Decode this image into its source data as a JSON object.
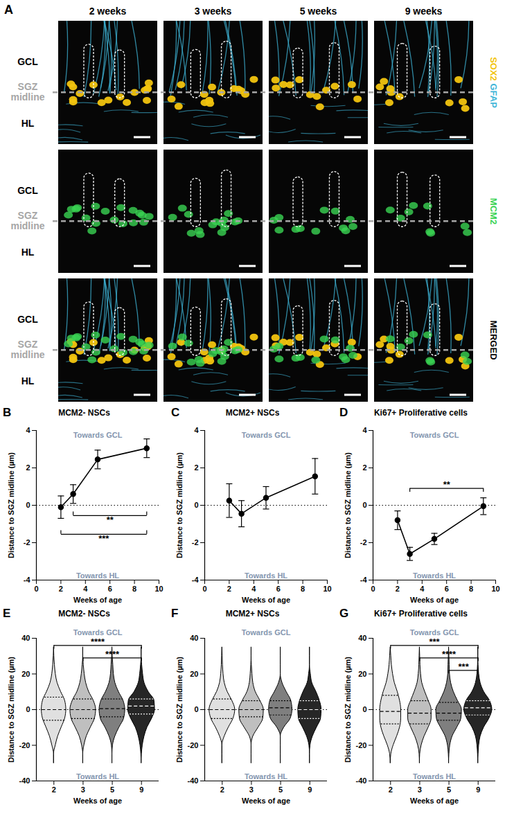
{
  "panel_a": {
    "letter": "A",
    "columns": [
      "2 weeks",
      "3 weeks",
      "5 weeks",
      "9 weeks"
    ],
    "layer_labels": [
      "GCL",
      "SGZ midline",
      "HL"
    ],
    "rows": [
      {
        "right_labels": [
          {
            "text": "SOX2",
            "color": "#f2c40f"
          },
          {
            "text": "GFAP",
            "color": "#3fb6d8"
          }
        ],
        "layers": [
          "gfap",
          "sox2"
        ]
      },
      {
        "right_labels": [
          {
            "text": "MCM2",
            "color": "#39d353"
          }
        ],
        "layers": [
          "mcm2"
        ]
      },
      {
        "right_labels": [
          {
            "text": "MERGED",
            "color": "#000000"
          }
        ],
        "layers": [
          "gfap",
          "sox2",
          "mcm2"
        ]
      }
    ]
  },
  "chart_data": [
    {
      "panel": "B",
      "type": "line",
      "title": "MCM2- NSCs",
      "x_label": "Weeks of age",
      "y_label": "Distance to SGZ midline (µm)",
      "x": [
        2,
        3,
        5,
        9
      ],
      "values": [
        -0.1,
        0.6,
        2.45,
        3.05
      ],
      "errors": [
        0.6,
        0.5,
        0.5,
        0.5
      ],
      "color": "#000000",
      "marker": "circle",
      "xlim": [
        0,
        10
      ],
      "xticks": [
        0,
        2,
        4,
        6,
        8,
        10
      ],
      "ylim": [
        -4,
        4
      ],
      "yticks": [
        -4,
        -2,
        0,
        2,
        4
      ],
      "reference_y": 0,
      "annotations": [
        {
          "text": "Towards GCL",
          "position": "top"
        },
        {
          "text": "Towards HL",
          "position": "bottom"
        }
      ],
      "significance": [
        {
          "x1": 3,
          "x2": 9,
          "y": -0.55,
          "label": "**"
        },
        {
          "x1": 2,
          "x2": 9,
          "y": -1.55,
          "label": "***"
        }
      ]
    },
    {
      "panel": "C",
      "type": "line",
      "title": "MCM2+ NSCs",
      "x_label": "Weeks of age",
      "y_label": "Distance to SGZ midline (µm)",
      "x": [
        2,
        3,
        5,
        9
      ],
      "values": [
        0.25,
        -0.45,
        0.4,
        1.55
      ],
      "errors": [
        0.9,
        0.7,
        0.6,
        0.95
      ],
      "color": "#000000",
      "marker": "circle",
      "xlim": [
        0,
        10
      ],
      "xticks": [
        0,
        2,
        4,
        6,
        8,
        10
      ],
      "ylim": [
        -4,
        4
      ],
      "yticks": [
        -4,
        -2,
        0,
        2,
        4
      ],
      "reference_y": 0,
      "annotations": [
        {
          "text": "Towards GCL",
          "position": "top"
        },
        {
          "text": "Towards HL",
          "position": "bottom"
        }
      ],
      "significance": []
    },
    {
      "panel": "D",
      "type": "line",
      "title": "Ki67+ Proliferative cells",
      "x_label": "Weeks of age",
      "y_label": "Distance to SGZ midline (µm)",
      "x": [
        2,
        3,
        5,
        9
      ],
      "values": [
        -0.8,
        -2.6,
        -1.8,
        -0.05
      ],
      "errors": [
        0.5,
        0.35,
        0.3,
        0.45
      ],
      "color": "#000000",
      "marker": "circle",
      "xlim": [
        0,
        10
      ],
      "xticks": [
        0,
        2,
        4,
        6,
        8,
        10
      ],
      "ylim": [
        -4,
        4
      ],
      "yticks": [
        -4,
        -2,
        0,
        2,
        4
      ],
      "reference_y": 0,
      "annotations": [
        {
          "text": "Towards GCL",
          "position": "top"
        },
        {
          "text": "Towards HL",
          "position": "bottom"
        }
      ],
      "significance": [
        {
          "x1": 3,
          "x2": 9,
          "y": 0.9,
          "label": "**"
        }
      ]
    },
    {
      "panel": "E",
      "type": "violin",
      "title": "MCM2- NSCs",
      "x_label": "Weeks of age",
      "y_label": "Distance to SGZ midline (µm)",
      "categories": [
        "2",
        "3",
        "5",
        "9"
      ],
      "ylim": [
        -40,
        40
      ],
      "yticks": [
        -40,
        -20,
        0,
        20,
        40
      ],
      "reference_y": 0,
      "density_y": [
        -30,
        -25,
        -20,
        -15,
        -10,
        -5,
        0,
        5,
        10,
        15,
        20,
        25,
        30,
        35
      ],
      "violins": [
        {
          "color": "#e0e0e0",
          "quartiles": [
            -6,
            0,
            7
          ],
          "density": [
            0,
            0,
            0.06,
            0.14,
            0.26,
            0.38,
            0.42,
            0.38,
            0.24,
            0.12,
            0.06,
            0.03,
            0.01,
            0
          ]
        },
        {
          "color": "#bfbfbf",
          "quartiles": [
            -5,
            0,
            6
          ],
          "density": [
            0,
            0,
            0.04,
            0.12,
            0.26,
            0.4,
            0.44,
            0.36,
            0.2,
            0.1,
            0.05,
            0.02,
            0,
            0
          ]
        },
        {
          "color": "#7f7f7f",
          "quartiles": [
            -4,
            0.5,
            6
          ],
          "density": [
            0,
            0,
            0.02,
            0.1,
            0.24,
            0.4,
            0.44,
            0.38,
            0.22,
            0.1,
            0.05,
            0.03,
            0.01,
            0
          ]
        },
        {
          "color": "#262626",
          "quartiles": [
            -2.5,
            2,
            6
          ],
          "density": [
            0,
            0.01,
            0.04,
            0.1,
            0.2,
            0.36,
            0.46,
            0.44,
            0.24,
            0.1,
            0.05,
            0.02,
            0,
            0
          ]
        }
      ],
      "annotations": [
        {
          "text": "Towards GCL",
          "position": "top"
        },
        {
          "text": "Towards HL",
          "position": "bottom"
        }
      ],
      "significance": [
        {
          "x1": "2",
          "x2": "9",
          "y": 36,
          "label": "****"
        },
        {
          "x1": "3",
          "x2": "9",
          "y": 29,
          "label": "****"
        }
      ]
    },
    {
      "panel": "F",
      "type": "violin",
      "title": "MCM2+ NSCs",
      "x_label": "Weeks of age",
      "y_label": "Distance to SGZ midline (µm)",
      "categories": [
        "2",
        "3",
        "5",
        "9"
      ],
      "ylim": [
        -40,
        40
      ],
      "yticks": [
        -40,
        -20,
        0,
        20,
        40
      ],
      "reference_y": 0,
      "density_y": [
        -30,
        -25,
        -20,
        -15,
        -10,
        -5,
        0,
        5,
        10,
        15,
        20,
        25,
        30,
        35
      ],
      "violins": [
        {
          "color": "#e0e0e0",
          "quartiles": [
            -5,
            0,
            6
          ],
          "density": [
            0,
            0,
            0,
            0.08,
            0.22,
            0.38,
            0.44,
            0.34,
            0.18,
            0.08,
            0.04,
            0.02,
            0.01,
            0
          ]
        },
        {
          "color": "#bfbfbf",
          "quartiles": [
            -4,
            0,
            5
          ],
          "density": [
            0,
            0,
            0,
            0.06,
            0.24,
            0.4,
            0.42,
            0.3,
            0.14,
            0.06,
            0.03,
            0.01,
            0,
            0
          ]
        },
        {
          "color": "#7f7f7f",
          "quartiles": [
            -3,
            1,
            5
          ],
          "density": [
            0,
            0,
            0,
            0,
            0.12,
            0.34,
            0.4,
            0.36,
            0.2,
            0.06,
            0,
            0,
            0,
            0
          ]
        },
        {
          "color": "#262626",
          "quartiles": [
            -5,
            0,
            5
          ],
          "density": [
            0,
            0,
            0.02,
            0.1,
            0.24,
            0.38,
            0.4,
            0.34,
            0.22,
            0.08,
            0.03,
            0,
            0,
            0
          ]
        }
      ],
      "annotations": [
        {
          "text": "Towards GCL",
          "position": "top"
        },
        {
          "text": "Towards HL",
          "position": "bottom"
        }
      ],
      "significance": []
    },
    {
      "panel": "G",
      "type": "violin",
      "title": "Ki67+ Proliferative cells",
      "x_label": "Weeks of age",
      "y_label": "Distance to SGZ midline (µm)",
      "categories": [
        "2",
        "3",
        "5",
        "9"
      ],
      "ylim": [
        -40,
        40
      ],
      "yticks": [
        -40,
        -20,
        0,
        20,
        40
      ],
      "reference_y": 0,
      "density_y": [
        -30,
        -25,
        -20,
        -15,
        -10,
        -5,
        0,
        5,
        10,
        15,
        20,
        25,
        30,
        35
      ],
      "violins": [
        {
          "color": "#e0e0e0",
          "quartiles": [
            -8,
            -1,
            8
          ],
          "density": [
            0,
            0.02,
            0.1,
            0.22,
            0.32,
            0.36,
            0.36,
            0.32,
            0.24,
            0.14,
            0.08,
            0.04,
            0.02,
            0
          ]
        },
        {
          "color": "#bfbfbf",
          "quartiles": [
            -8,
            -2,
            5
          ],
          "density": [
            0,
            0.01,
            0.06,
            0.16,
            0.3,
            0.4,
            0.4,
            0.3,
            0.18,
            0.08,
            0.04,
            0.02,
            0.01,
            0
          ]
        },
        {
          "color": "#7f7f7f",
          "quartiles": [
            -6,
            -2,
            4
          ],
          "density": [
            0,
            0.01,
            0.04,
            0.12,
            0.28,
            0.42,
            0.44,
            0.3,
            0.16,
            0.07,
            0.03,
            0.02,
            0.01,
            0
          ]
        },
        {
          "color": "#262626",
          "quartiles": [
            -3,
            1,
            5
          ],
          "density": [
            0,
            0.01,
            0.03,
            0.08,
            0.2,
            0.38,
            0.48,
            0.4,
            0.2,
            0.08,
            0.03,
            0.01,
            0,
            0
          ]
        }
      ],
      "annotations": [
        {
          "text": "Towards GCL",
          "position": "top"
        },
        {
          "text": "Towards HL",
          "position": "bottom"
        }
      ],
      "significance": [
        {
          "x1": "2",
          "x2": "9",
          "y": 36,
          "label": "***"
        },
        {
          "x1": "3",
          "x2": "9",
          "y": 29,
          "label": "****"
        },
        {
          "x1": "5",
          "x2": "9",
          "y": 22,
          "label": "***"
        }
      ]
    }
  ]
}
